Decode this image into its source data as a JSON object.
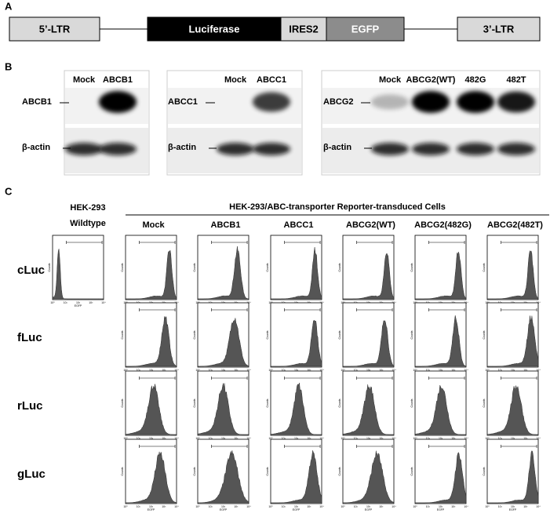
{
  "panel_a": {
    "label": "A",
    "segments": [
      "5’-LTR",
      "Luciferase",
      "IRES2",
      "EGFP",
      "3’-LTR"
    ]
  },
  "panel_b": {
    "label": "B",
    "blots": [
      {
        "lanes": [
          "Mock",
          "ABCB1"
        ],
        "target": "ABCB1",
        "loading": "β-actin"
      },
      {
        "lanes": [
          "Mock",
          "ABCC1"
        ],
        "target": "ABCC1",
        "loading": "β-actin"
      },
      {
        "lanes": [
          "Mock",
          "ABCG2(WT)",
          "482G",
          "482T"
        ],
        "target": "ABCG2",
        "loading": "β-actin"
      }
    ]
  },
  "panel_c": {
    "label": "C",
    "control_header": [
      "HEK-293",
      "Wildtype"
    ],
    "group_header": "HEK-293/ABC-transporter Reporter-transduced Cells",
    "columns": [
      "Mock",
      "ABCB1",
      "ABCC1",
      "ABCG2(WT)",
      "ABCG2(482G)",
      "ABCG2(482T)"
    ],
    "rows": [
      "cLuc",
      "fLuc",
      "rLuc",
      "gLuc"
    ],
    "x_axis_label": "EGFP",
    "y_axis_label": "Counts",
    "x_ticks": [
      "10⁰",
      "10¹",
      "10²",
      "10³",
      "10⁴"
    ]
  }
}
